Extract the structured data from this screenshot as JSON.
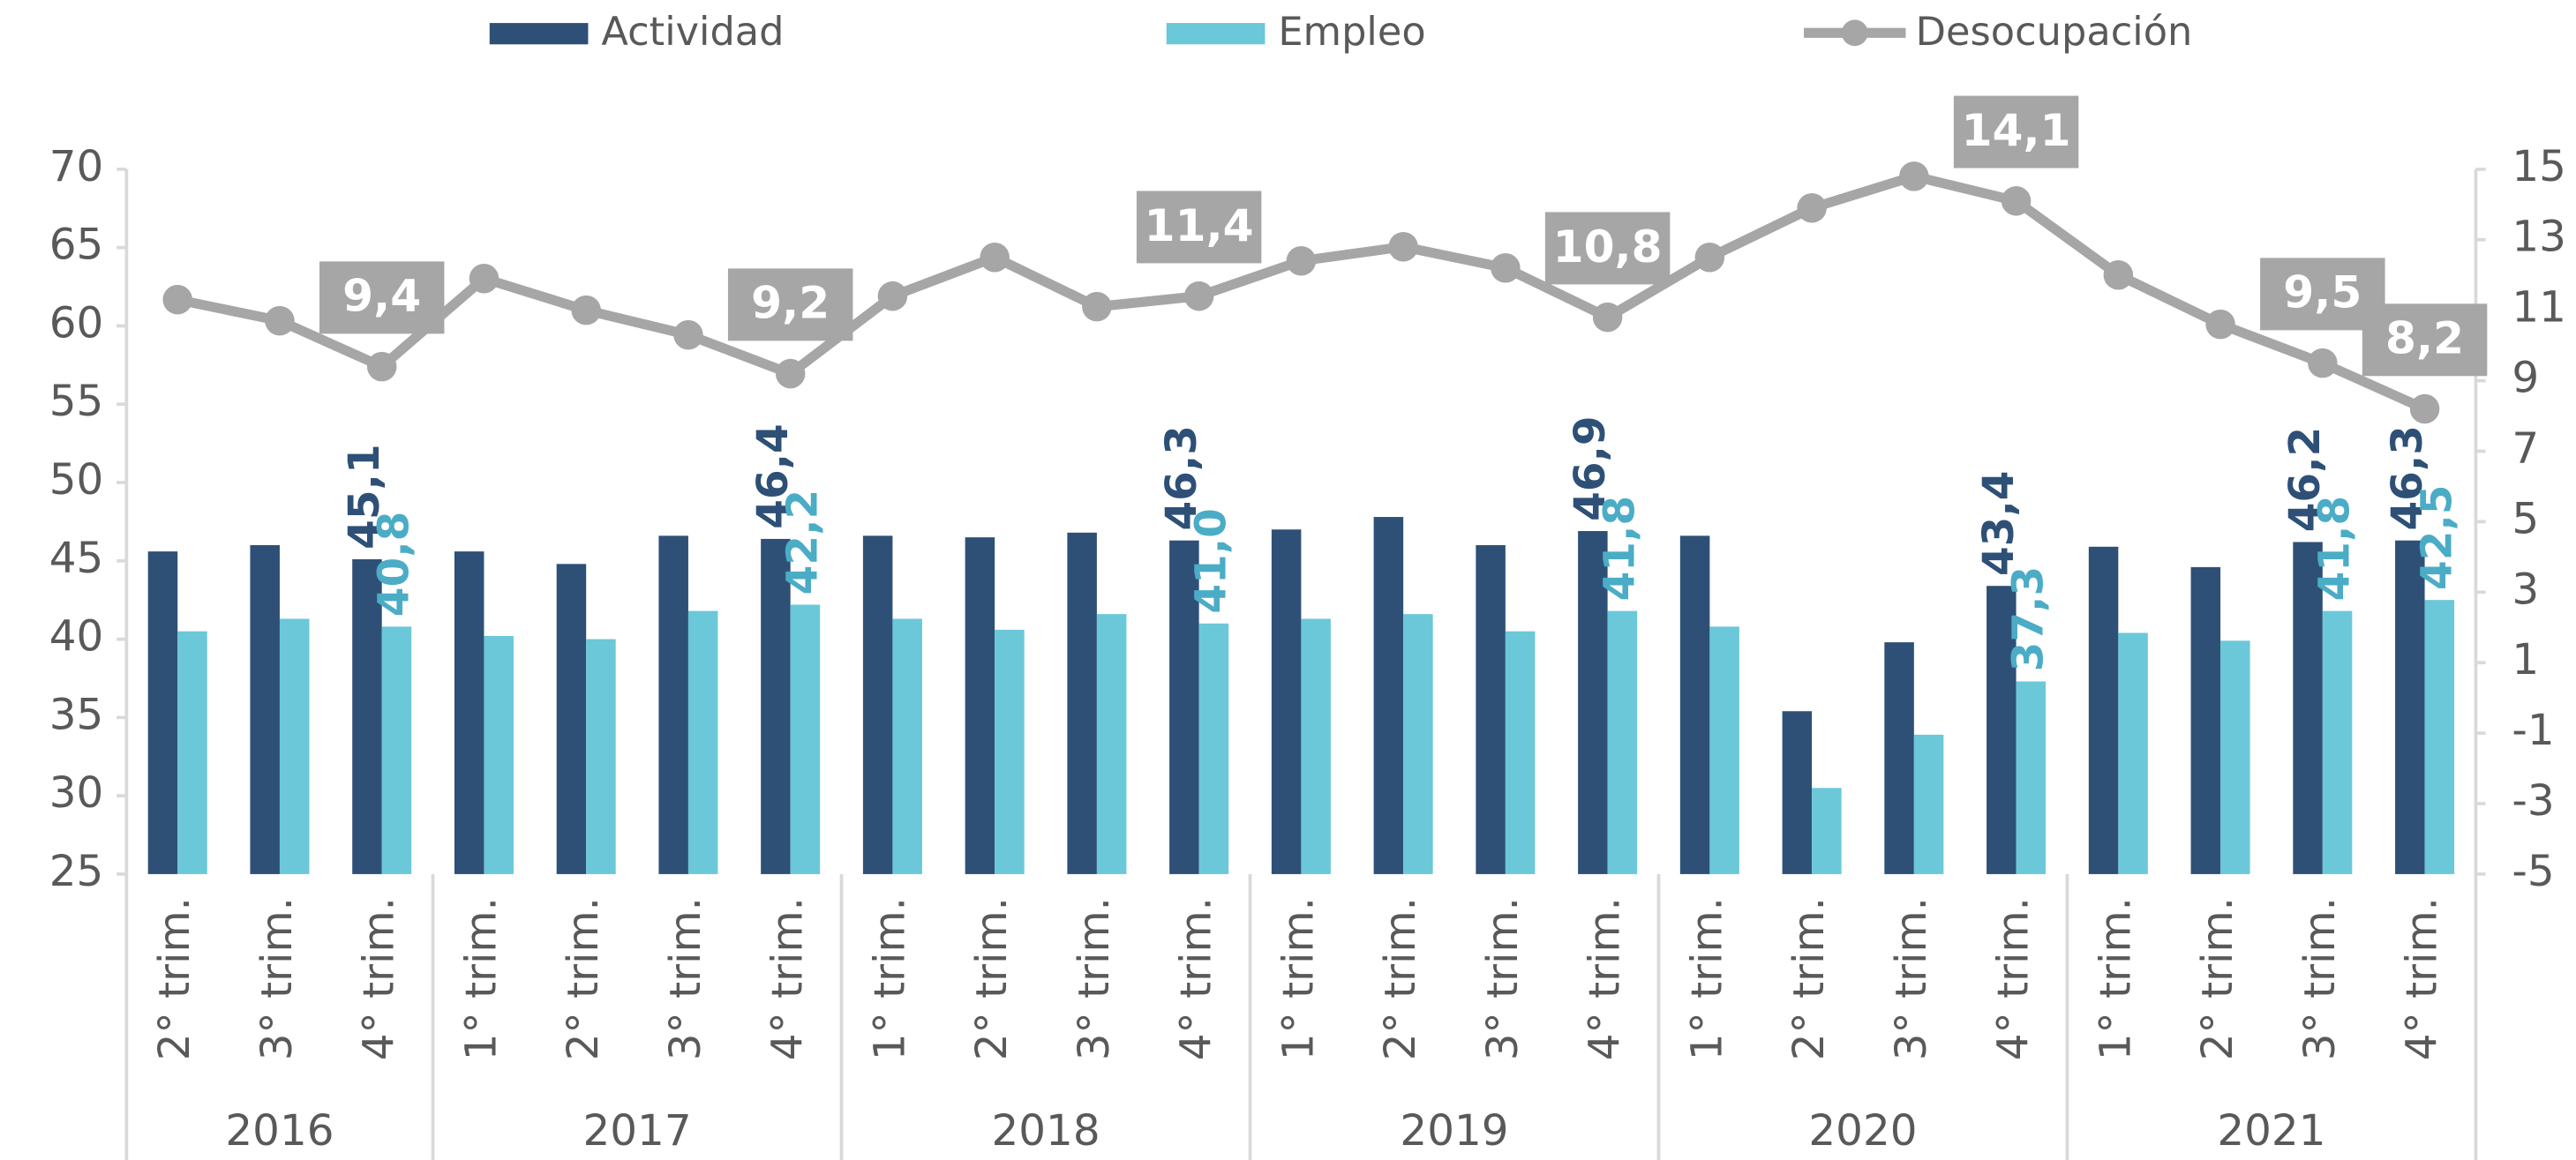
{
  "chart_data": {
    "type": "bar_line",
    "groups": [
      {
        "name": "2016",
        "categories": [
          "2° trim.",
          "3° trim.",
          "4° trim."
        ]
      },
      {
        "name": "2017",
        "categories": [
          "1° trim.",
          "2° trim.",
          "3° trim.",
          "4° trim."
        ]
      },
      {
        "name": "2018",
        "categories": [
          "1° trim.",
          "2° trim.",
          "3° trim.",
          "4° trim."
        ]
      },
      {
        "name": "2019",
        "categories": [
          "1° trim.",
          "2° trim.",
          "3° trim.",
          "4° trim."
        ]
      },
      {
        "name": "2020",
        "categories": [
          "1° trim.",
          "2° trim.",
          "3° trim.",
          "4° trim."
        ]
      },
      {
        "name": "2021",
        "categories": [
          "1° trim.",
          "2° trim.",
          "3° trim.",
          "4° trim."
        ]
      }
    ],
    "series": [
      {
        "name": "Actividad",
        "type": "bar",
        "color": "#2e5077",
        "label_color": "#2e5077",
        "values": [
          45.6,
          46.0,
          45.1,
          45.6,
          44.8,
          46.6,
          46.4,
          46.6,
          46.5,
          46.8,
          46.3,
          47.0,
          47.8,
          46.0,
          46.9,
          46.6,
          35.4,
          39.8,
          43.4,
          45.9,
          44.6,
          46.2,
          46.3
        ],
        "value_labels": [
          null,
          null,
          "45,1",
          null,
          null,
          null,
          "46,4",
          null,
          null,
          null,
          "46,3",
          null,
          null,
          null,
          "46,9",
          null,
          null,
          null,
          "43,4",
          null,
          null,
          "46,2",
          "46,3"
        ]
      },
      {
        "name": "Empleo",
        "type": "bar",
        "color": "#6ac8d9",
        "label_color": "#4bacc6",
        "values": [
          40.5,
          41.3,
          40.8,
          40.2,
          40.0,
          41.8,
          42.2,
          41.3,
          40.6,
          41.6,
          41.0,
          41.3,
          41.6,
          40.5,
          41.8,
          40.8,
          30.5,
          33.9,
          37.3,
          40.4,
          39.9,
          41.8,
          42.5
        ],
        "value_labels": [
          null,
          null,
          "40,8",
          null,
          null,
          null,
          "42,2",
          null,
          null,
          null,
          "41,0",
          null,
          null,
          null,
          "41,8",
          null,
          null,
          null,
          "37,3",
          null,
          null,
          "41,8",
          "42,5"
        ]
      },
      {
        "name": "Desocupación",
        "type": "line",
        "axis": "y2",
        "color": "#a6a6a6",
        "values": [
          11.3,
          10.7,
          9.4,
          11.9,
          11.0,
          10.3,
          9.2,
          11.4,
          12.5,
          11.1,
          11.4,
          12.4,
          12.8,
          12.2,
          10.8,
          12.5,
          13.9,
          14.8,
          14.1,
          12.0,
          10.6,
          9.5,
          8.2
        ],
        "value_labels": [
          null,
          null,
          "9,4",
          null,
          null,
          null,
          "9,2",
          null,
          null,
          null,
          "11,4",
          null,
          null,
          null,
          "10,8",
          null,
          null,
          null,
          "14,1",
          null,
          null,
          "9,5",
          "8,2"
        ]
      }
    ],
    "ylim": [
      25,
      70
    ],
    "yticks": [
      25,
      30,
      35,
      40,
      45,
      50,
      55,
      60,
      65,
      70
    ],
    "y2lim": [
      -5,
      15
    ],
    "y2ticks": [
      -5,
      -3,
      -1,
      1,
      3,
      5,
      7,
      9,
      11,
      13,
      15
    ],
    "legend": "top"
  }
}
